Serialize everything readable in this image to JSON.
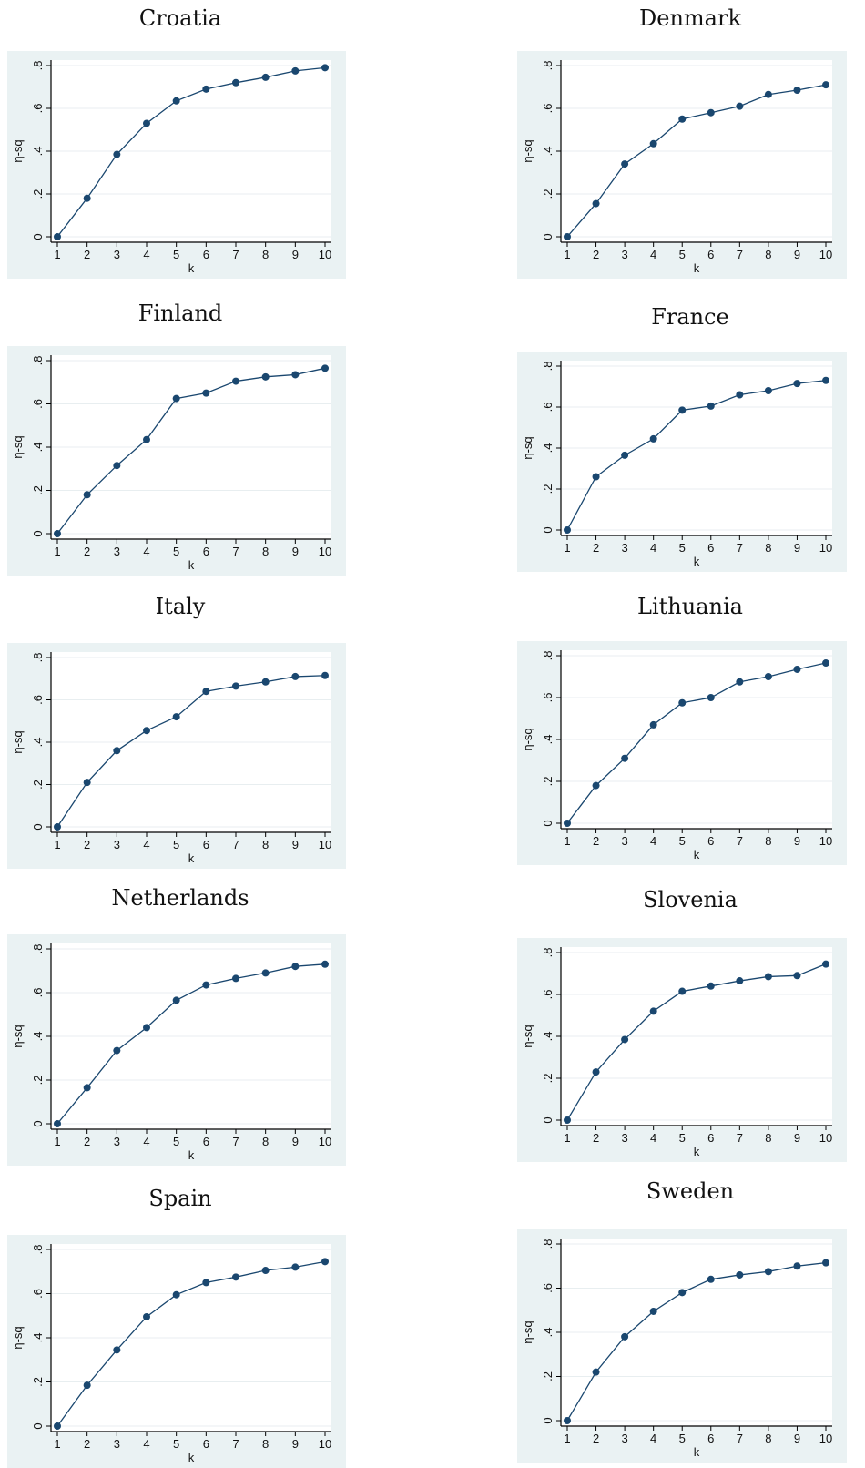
{
  "chart_data": [
    {
      "type": "line",
      "title": "Croatia",
      "xlabel": "k",
      "ylabel": "η-sq",
      "x": [
        1,
        2,
        3,
        4,
        5,
        6,
        7,
        8,
        9,
        10
      ],
      "y": [
        0,
        0.18,
        0.385,
        0.53,
        0.635,
        0.69,
        0.72,
        0.745,
        0.775,
        0.79
      ],
      "xlim": [
        1,
        10
      ],
      "ylim": [
        0,
        0.8
      ],
      "yticks": [
        "0",
        ".2",
        ".4",
        ".6",
        ".8"
      ],
      "grid": true,
      "color": "#1a476f"
    },
    {
      "type": "line",
      "title": "Denmark",
      "xlabel": "k",
      "ylabel": "η-sq",
      "x": [
        1,
        2,
        3,
        4,
        5,
        6,
        7,
        8,
        9,
        10
      ],
      "y": [
        0,
        0.155,
        0.34,
        0.435,
        0.55,
        0.58,
        0.61,
        0.665,
        0.685,
        0.71
      ],
      "xlim": [
        1,
        10
      ],
      "ylim": [
        0,
        0.8
      ],
      "yticks": [
        "0",
        ".2",
        ".4",
        ".6",
        ".8"
      ],
      "grid": true,
      "color": "#1a476f"
    },
    {
      "type": "line",
      "title": "Finland",
      "xlabel": "k",
      "ylabel": "η-sq",
      "x": [
        1,
        2,
        3,
        4,
        5,
        6,
        7,
        8,
        9,
        10
      ],
      "y": [
        0,
        0.18,
        0.315,
        0.435,
        0.625,
        0.65,
        0.705,
        0.725,
        0.735,
        0.765
      ],
      "xlim": [
        1,
        10
      ],
      "ylim": [
        0,
        0.8
      ],
      "yticks": [
        "0",
        ".2",
        ".4",
        ".6",
        ".8"
      ],
      "grid": true,
      "color": "#1a476f"
    },
    {
      "type": "line",
      "title": "France",
      "xlabel": "k",
      "ylabel": "η-sq",
      "x": [
        1,
        2,
        3,
        4,
        5,
        6,
        7,
        8,
        9,
        10
      ],
      "y": [
        0,
        0.26,
        0.365,
        0.445,
        0.585,
        0.605,
        0.66,
        0.68,
        0.715,
        0.73
      ],
      "xlim": [
        1,
        10
      ],
      "ylim": [
        0,
        0.8
      ],
      "yticks": [
        "0",
        ".2",
        ".4",
        ".6",
        ".8"
      ],
      "grid": true,
      "color": "#1a476f"
    },
    {
      "type": "line",
      "title": "Italy",
      "xlabel": "k",
      "ylabel": "η-sq",
      "x": [
        1,
        2,
        3,
        4,
        5,
        6,
        7,
        8,
        9,
        10
      ],
      "y": [
        0,
        0.21,
        0.36,
        0.455,
        0.52,
        0.64,
        0.665,
        0.685,
        0.71,
        0.715
      ],
      "xlim": [
        1,
        10
      ],
      "ylim": [
        0,
        0.8
      ],
      "yticks": [
        "0",
        ".2",
        ".4",
        ".6",
        ".8"
      ],
      "grid": true,
      "color": "#1a476f"
    },
    {
      "type": "line",
      "title": "Lithuania",
      "xlabel": "k",
      "ylabel": "η-sq",
      "x": [
        1,
        2,
        3,
        4,
        5,
        6,
        7,
        8,
        9,
        10
      ],
      "y": [
        0,
        0.18,
        0.31,
        0.47,
        0.575,
        0.6,
        0.675,
        0.7,
        0.735,
        0.765
      ],
      "xlim": [
        1,
        10
      ],
      "ylim": [
        0,
        0.8
      ],
      "yticks": [
        "0",
        ".2",
        ".4",
        ".6",
        ".8"
      ],
      "grid": true,
      "color": "#1a476f"
    },
    {
      "type": "line",
      "title": "Netherlands",
      "xlabel": "k",
      "ylabel": "η-sq",
      "x": [
        1,
        2,
        3,
        4,
        5,
        6,
        7,
        8,
        9,
        10
      ],
      "y": [
        0,
        0.165,
        0.335,
        0.44,
        0.565,
        0.635,
        0.665,
        0.69,
        0.72,
        0.73
      ],
      "xlim": [
        1,
        10
      ],
      "ylim": [
        0,
        0.8
      ],
      "yticks": [
        "0",
        ".2",
        ".4",
        ".6",
        ".8"
      ],
      "grid": true,
      "color": "#1a476f"
    },
    {
      "type": "line",
      "title": "Slovenia",
      "xlabel": "k",
      "ylabel": "η-sq",
      "x": [
        1,
        2,
        3,
        4,
        5,
        6,
        7,
        8,
        9,
        10
      ],
      "y": [
        0,
        0.23,
        0.385,
        0.52,
        0.615,
        0.64,
        0.665,
        0.685,
        0.69,
        0.745
      ],
      "xlim": [
        1,
        10
      ],
      "ylim": [
        0,
        0.8
      ],
      "yticks": [
        "0",
        ".2",
        ".4",
        ".6",
        ".8"
      ],
      "grid": true,
      "color": "#1a476f"
    },
    {
      "type": "line",
      "title": "Spain",
      "xlabel": "k",
      "ylabel": "η-sq",
      "x": [
        1,
        2,
        3,
        4,
        5,
        6,
        7,
        8,
        9,
        10
      ],
      "y": [
        0,
        0.185,
        0.345,
        0.495,
        0.595,
        0.65,
        0.675,
        0.705,
        0.72,
        0.745
      ],
      "xlim": [
        1,
        10
      ],
      "ylim": [
        0,
        0.8
      ],
      "yticks": [
        "0",
        ".2",
        ".4",
        ".6",
        ".8"
      ],
      "grid": true,
      "color": "#1a476f"
    },
    {
      "type": "line",
      "title": "Sweden",
      "xlabel": "k",
      "ylabel": "η-sq",
      "x": [
        1,
        2,
        3,
        4,
        5,
        6,
        7,
        8,
        9,
        10
      ],
      "y": [
        0,
        0.22,
        0.38,
        0.495,
        0.58,
        0.64,
        0.66,
        0.675,
        0.7,
        0.715
      ],
      "xlim": [
        1,
        10
      ],
      "ylim": [
        0,
        0.8
      ],
      "yticks": [
        "0",
        ".2",
        ".4",
        ".6",
        ".8"
      ],
      "grid": true,
      "color": "#1a476f"
    }
  ]
}
